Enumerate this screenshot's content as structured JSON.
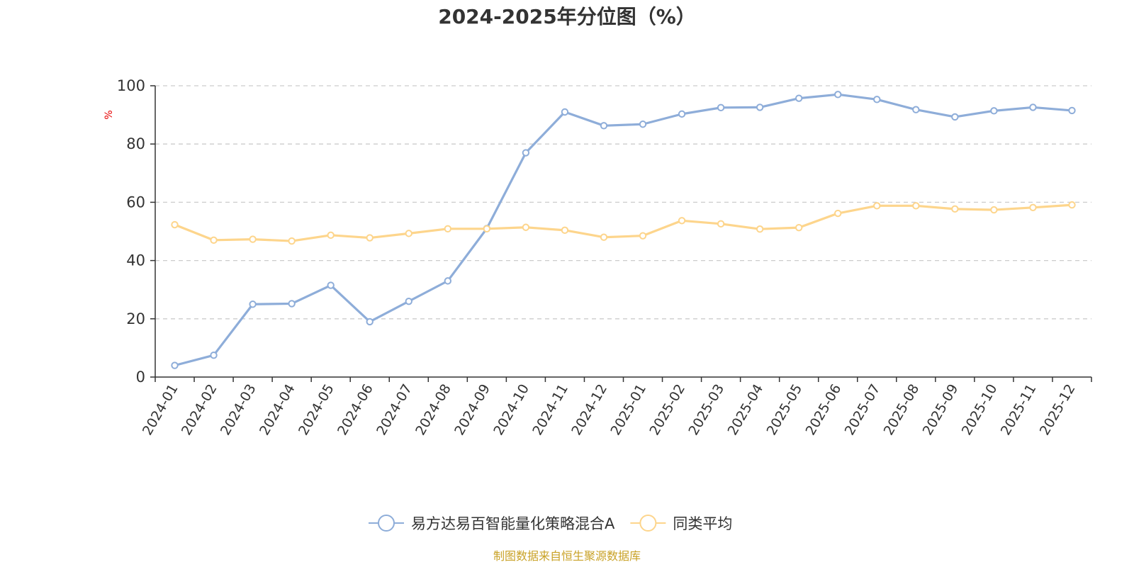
{
  "colors": {
    "series_a": "#8eadd9",
    "series_b": "#fdd58c",
    "axis": "#333333",
    "grid": "#cccccc",
    "unit": "#e60000",
    "source": "#c9a227"
  },
  "chart_data": {
    "type": "line",
    "title": "2024-2025年分位图（%）",
    "ylabel": "%",
    "xlabel": "",
    "ylim": [
      0,
      100
    ],
    "yticks": [
      "0",
      "20",
      "40",
      "60",
      "80",
      "100"
    ],
    "grid": true,
    "legend_position": "bottom",
    "categories": [
      "2024-01",
      "2024-02",
      "2024-03",
      "2024-04",
      "2024-05",
      "2024-06",
      "2024-07",
      "2024-08",
      "2024-09",
      "2024-10",
      "2024-11",
      "2024-12",
      "2025-01",
      "2025-02",
      "2025-03",
      "2025-04",
      "2025-05",
      "2025-06",
      "2025-07",
      "2025-08",
      "2025-09",
      "2025-10",
      "2025-11",
      "2025-12"
    ],
    "series": [
      {
        "name": "易方达易百智能量化策略混合A",
        "color": "#8eadd9",
        "values": [
          4,
          7.5,
          25,
          25.2,
          31.5,
          19,
          26,
          33,
          51,
          77,
          91,
          86.3,
          86.8,
          90.3,
          92.5,
          92.6,
          95.7,
          97,
          95.3,
          91.8,
          89.3,
          91.4,
          92.6,
          91.5
        ]
      },
      {
        "name": "同类平均",
        "color": "#fdd58c",
        "values": [
          52.3,
          47,
          47.3,
          46.7,
          48.7,
          47.8,
          49.3,
          50.9,
          50.9,
          51.4,
          50.4,
          48,
          48.5,
          53.7,
          52.6,
          50.8,
          51.3,
          56.2,
          58.8,
          58.8,
          57.7,
          57.4,
          58.2,
          59.1
        ]
      }
    ]
  },
  "source_text": "制图数据来自恒生聚源数据库"
}
